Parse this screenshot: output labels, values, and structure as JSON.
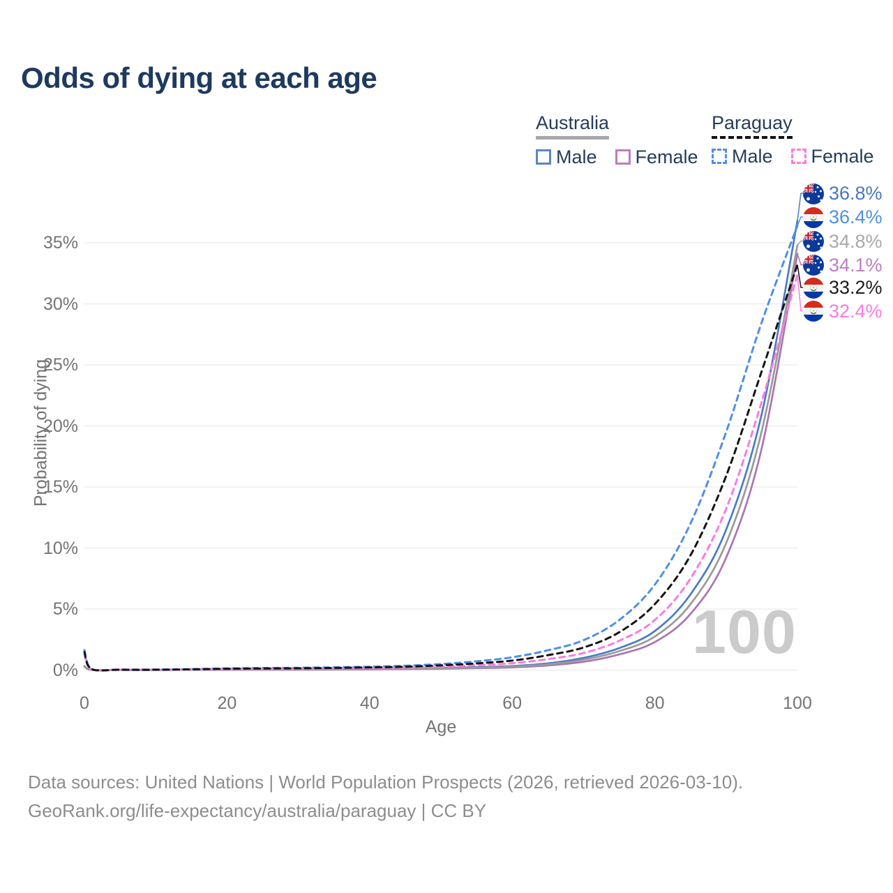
{
  "title": "Odds of dying at each age",
  "watermark": "100",
  "legend": {
    "groups": [
      {
        "country": "Australia",
        "line_style": "solid",
        "underline_color": "#a8a8a8",
        "items": [
          {
            "label": "Male",
            "swatch_color": "#5b85c6",
            "swatch_style": "solid"
          },
          {
            "label": "Female",
            "swatch_color": "#c07cbe",
            "swatch_style": "solid"
          }
        ]
      },
      {
        "country": "Paraguay",
        "line_style": "dashed",
        "underline_color": "#111111",
        "items": [
          {
            "label": "Male",
            "swatch_color": "#4e8fe8",
            "swatch_style": "dashed"
          },
          {
            "label": "Female",
            "swatch_color": "#fb7be0",
            "swatch_style": "dashed"
          }
        ]
      }
    ]
  },
  "chart_data": {
    "type": "line",
    "title": "Odds of dying at each age",
    "xlabel": "Age",
    "ylabel": "Probability of dying",
    "x_ticks": [
      0,
      20,
      40,
      60,
      80,
      100
    ],
    "y_ticks": [
      "0%",
      "5%",
      "10%",
      "15%",
      "20%",
      "25%",
      "30%",
      "35%"
    ],
    "xlim": [
      0,
      100
    ],
    "ylim_pct": [
      0,
      38.5
    ],
    "grid": "horizontal",
    "legend_position": "top-right",
    "ages": [
      0,
      1,
      5,
      10,
      15,
      20,
      25,
      30,
      35,
      40,
      45,
      50,
      55,
      60,
      65,
      70,
      75,
      80,
      85,
      90,
      95,
      100
    ],
    "series": [
      {
        "name": "Australia Male",
        "country": "Australia",
        "sex": "male",
        "color": "#4a7bc4",
        "dash": false,
        "values_pct": [
          0.33,
          0.02,
          0.01,
          0.01,
          0.03,
          0.06,
          0.07,
          0.08,
          0.09,
          0.11,
          0.14,
          0.18,
          0.24,
          0.33,
          0.55,
          1.0,
          1.8,
          3.2,
          6.2,
          11.5,
          21.0,
          36.8
        ],
        "end_label": "36.8%",
        "end_label_color": "#4a77bd"
      },
      {
        "name": "Australia Female",
        "country": "Australia",
        "sex": "female",
        "color": "#ab74b0",
        "dash": false,
        "values_pct": [
          0.27,
          0.02,
          0.01,
          0.01,
          0.02,
          0.02,
          0.03,
          0.03,
          0.04,
          0.06,
          0.08,
          0.11,
          0.16,
          0.22,
          0.38,
          0.68,
          1.28,
          2.3,
          4.6,
          9.2,
          18.2,
          34.1
        ],
        "end_label": "34.1%",
        "end_label_color": "#bc7ec3"
      },
      {
        "name": "Australia Both sexes",
        "country": "Australia",
        "sex": "both",
        "color": "#9a9a9a",
        "dash": false,
        "values_pct": [
          0.3,
          0.02,
          0.01,
          0.01,
          0.02,
          0.04,
          0.05,
          0.06,
          0.07,
          0.09,
          0.11,
          0.15,
          0.2,
          0.28,
          0.47,
          0.85,
          1.55,
          2.75,
          5.4,
          10.4,
          19.6,
          34.8
        ],
        "end_label": "34.8%",
        "end_label_color": "#a9a9a9"
      },
      {
        "name": "Paraguay Male",
        "country": "Paraguay",
        "sex": "male",
        "color": "#4e8fe8",
        "dash": true,
        "values_pct": [
          1.65,
          0.1,
          0.04,
          0.04,
          0.08,
          0.14,
          0.17,
          0.19,
          0.23,
          0.28,
          0.36,
          0.5,
          0.72,
          1.05,
          1.62,
          2.45,
          4.1,
          7.0,
          12.0,
          19.5,
          28.5,
          36.4
        ],
        "end_label": "36.4%",
        "end_label_color": "#4e8fe8"
      },
      {
        "name": "Paraguay Female",
        "country": "Paraguay",
        "sex": "female",
        "color": "#fb7be0",
        "dash": true,
        "values_pct": [
          1.3,
          0.08,
          0.03,
          0.03,
          0.05,
          0.08,
          0.09,
          0.11,
          0.13,
          0.16,
          0.21,
          0.28,
          0.4,
          0.56,
          0.9,
          1.4,
          2.4,
          4.1,
          7.5,
          13.2,
          22.0,
          32.4
        ],
        "end_label": "32.4%",
        "end_label_color": "#fb7be0"
      },
      {
        "name": "Paraguay Both sexes",
        "country": "Paraguay",
        "sex": "both",
        "color": "#141414",
        "dash": true,
        "values_pct": [
          1.48,
          0.09,
          0.035,
          0.035,
          0.065,
          0.11,
          0.13,
          0.15,
          0.18,
          0.22,
          0.28,
          0.39,
          0.55,
          0.78,
          1.22,
          1.85,
          3.1,
          5.4,
          9.4,
          15.9,
          24.5,
          33.2
        ],
        "end_label": "33.2%",
        "end_label_color": "#1c1c1c"
      }
    ]
  },
  "footer": {
    "line1": "Data sources: United Nations | World Population Prospects (2026, retrieved 2026-03-10).",
    "line2": "GeoRank.org/life-expectancy/australia/paraguay | CC BY"
  }
}
